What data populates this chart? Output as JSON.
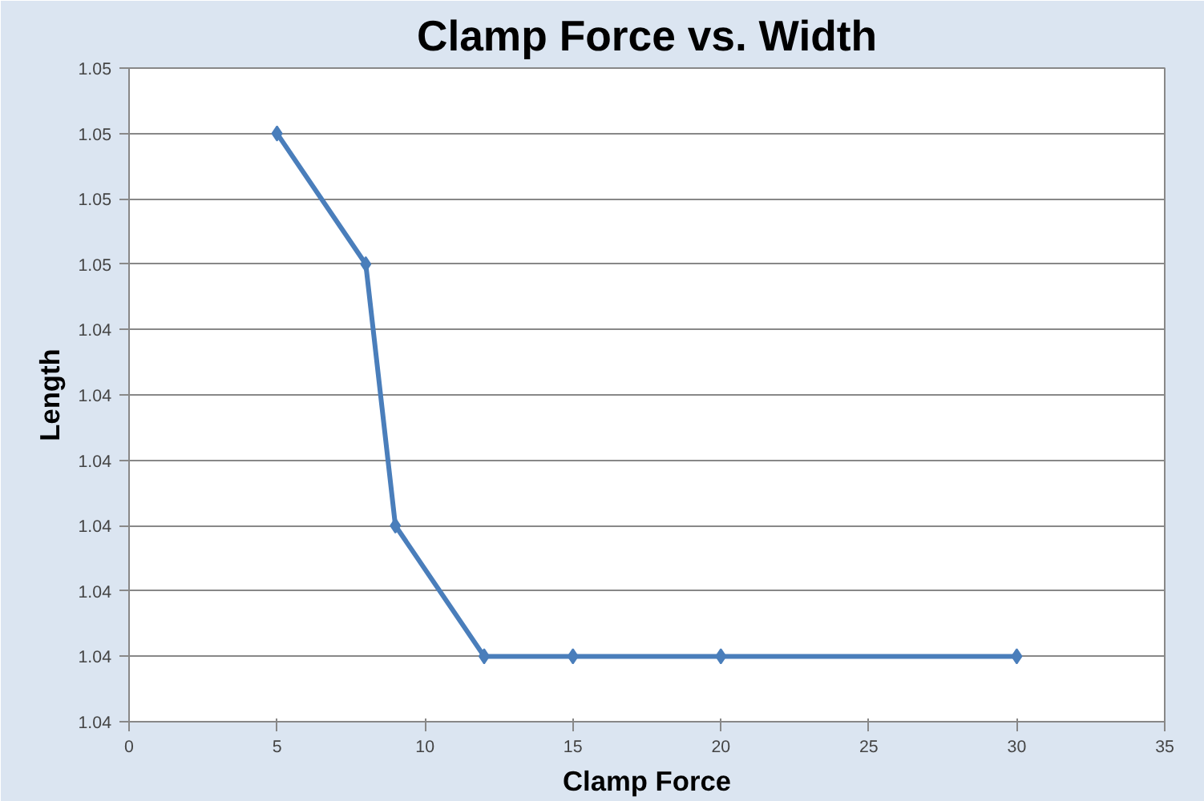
{
  "chart_data": {
    "type": "line",
    "title": "Clamp Force vs. Width",
    "xlabel": "Clamp Force",
    "ylabel": "Length",
    "x": [
      5,
      8,
      9,
      12,
      15,
      20,
      30
    ],
    "series": [
      {
        "color": "#4a7ebb",
        "values": [
          1.047,
          1.045,
          1.041,
          1.039,
          1.039,
          1.039,
          1.039
        ]
      }
    ],
    "xlim": [
      0,
      35
    ],
    "xticks": [
      0,
      5,
      10,
      15,
      20,
      25,
      30,
      35
    ],
    "ylim": [
      1.038,
      1.048
    ],
    "yticks": [
      {
        "value": 1.038,
        "label": "1.04"
      },
      {
        "value": 1.039,
        "label": "1.04"
      },
      {
        "value": 1.04,
        "label": "1.04"
      },
      {
        "value": 1.041,
        "label": "1.04"
      },
      {
        "value": 1.042,
        "label": "1.04"
      },
      {
        "value": 1.043,
        "label": "1.04"
      },
      {
        "value": 1.044,
        "label": "1.04"
      },
      {
        "value": 1.045,
        "label": "1.05"
      },
      {
        "value": 1.046,
        "label": "1.05"
      },
      {
        "value": 1.047,
        "label": "1.05"
      },
      {
        "value": 1.048,
        "label": "1.05"
      }
    ],
    "grid": "y",
    "marker": "diamond",
    "line_style": "solid"
  }
}
